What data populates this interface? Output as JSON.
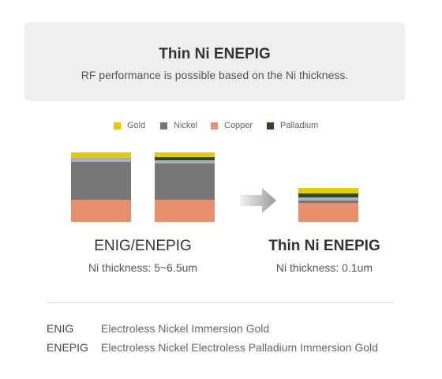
{
  "header": {
    "title": "Thin Ni ENEPIG",
    "subtitle": "RF performance is possible based on the Ni thickness."
  },
  "colors": {
    "gold": "#e8c800",
    "nickel": "#777777",
    "nickel_light": "#a9b0bc",
    "copper": "#e8906e",
    "palladium": "#2a4a2a",
    "header_bg": "#efefef"
  },
  "legend": [
    {
      "label": "Gold",
      "color": "#e8c800"
    },
    {
      "label": "Nickel",
      "color": "#777777"
    },
    {
      "label": "Copper",
      "color": "#e8906e"
    },
    {
      "label": "Palladium",
      "color": "#2a4a2a"
    }
  ],
  "groups": {
    "left": {
      "title": "ENIG/ENEPIG",
      "subtitle": "Ni thickness: 5~6.5um"
    },
    "right": {
      "title": "Thin Ni ENEPIG",
      "subtitle": "Ni thickness: 0.1um"
    }
  },
  "definitions": [
    {
      "term": "ENIG",
      "description": "Electroless Nickel Immersion Gold"
    },
    {
      "term": "ENEPIG",
      "description": "Electroless Nickel Electroless Palladium Immersion Gold"
    }
  ],
  "icons": {
    "arrow": "right-arrow-icon"
  }
}
